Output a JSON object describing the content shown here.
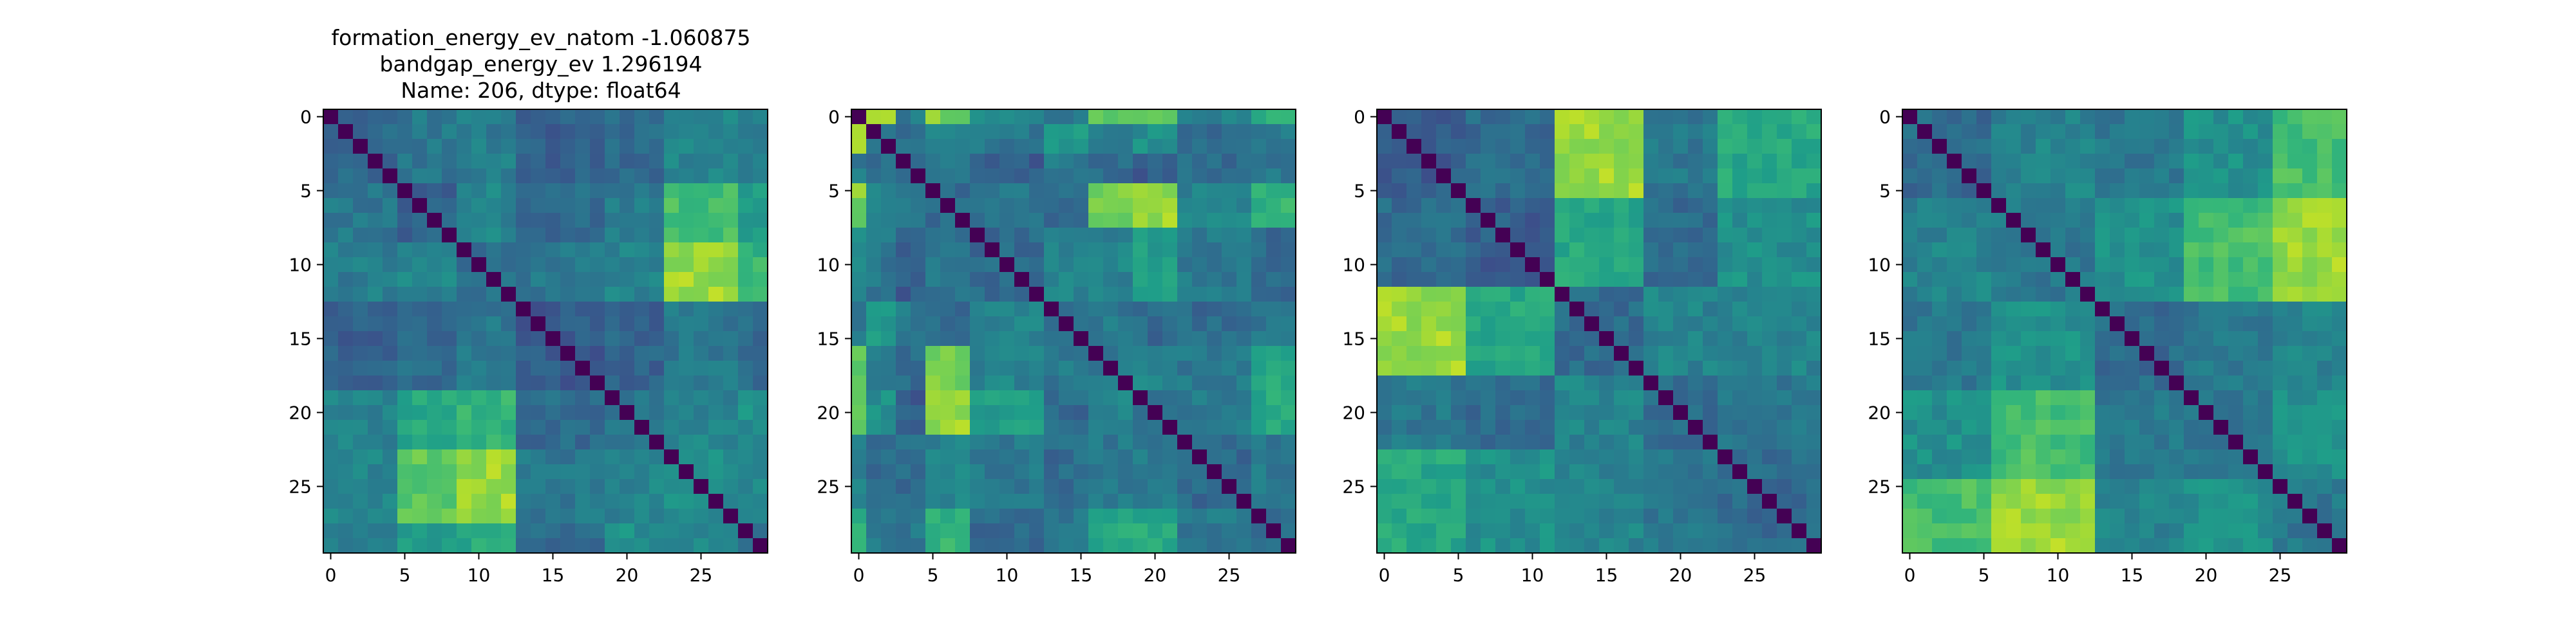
{
  "figure": {
    "title_lines": [
      "formation_energy_ev_natom   -1.060875",
      "bandgap_energy_ev            1.296194",
      "Name: 206, dtype: float64"
    ]
  },
  "chart_data": [
    {
      "type": "heatmap",
      "title": "",
      "size": 30,
      "colormap": "viridis",
      "diagonal": "zero (dark)",
      "xticks": [
        "0",
        "5",
        "10",
        "15",
        "20",
        "25"
      ],
      "yticks": [
        "0",
        "5",
        "10",
        "15",
        "20",
        "25"
      ],
      "xlim": [
        -0.5,
        29.5
      ],
      "ylim": [
        29.5,
        -0.5
      ],
      "groups": [
        [
          0,
          1,
          2,
          3,
          4
        ],
        [
          5,
          6,
          7,
          8
        ],
        [
          9,
          10,
          11,
          12
        ],
        [
          13,
          14,
          15,
          16,
          17,
          18
        ],
        [
          19,
          20,
          21,
          22
        ],
        [
          23,
          24,
          25,
          26,
          27
        ],
        [
          28,
          29
        ]
      ],
      "block_values": [
        [
          0.35,
          0.4,
          0.42,
          0.3,
          0.35,
          0.45,
          0.4
        ],
        [
          0.4,
          0.32,
          0.45,
          0.35,
          0.42,
          0.7,
          0.55
        ],
        [
          0.42,
          0.45,
          0.38,
          0.4,
          0.45,
          0.85,
          0.65
        ],
        [
          0.3,
          0.35,
          0.4,
          0.28,
          0.32,
          0.4,
          0.35
        ],
        [
          0.45,
          0.6,
          0.65,
          0.35,
          0.4,
          0.45,
          0.5
        ],
        [
          0.45,
          0.75,
          0.85,
          0.4,
          0.45,
          0.48,
          0.45
        ],
        [
          0.4,
          0.55,
          0.6,
          0.35,
          0.5,
          0.45,
          0.38
        ]
      ]
    },
    {
      "type": "heatmap",
      "title": "",
      "size": 30,
      "colormap": "viridis",
      "diagonal": "zero (dark)",
      "xticks": [
        "0",
        "5",
        "10",
        "15",
        "20",
        "25"
      ],
      "yticks": [
        "0",
        "5",
        "10",
        "15",
        "20",
        "25"
      ],
      "xlim": [
        -0.5,
        29.5
      ],
      "ylim": [
        29.5,
        -0.5
      ],
      "groups": [
        [
          0
        ],
        [
          1,
          2
        ],
        [
          3,
          4
        ],
        [
          5,
          6,
          7
        ],
        [
          8,
          9,
          10,
          11,
          12
        ],
        [
          13,
          14,
          15
        ],
        [
          16,
          17,
          18
        ],
        [
          19,
          20,
          21
        ],
        [
          22,
          23,
          24,
          25,
          26
        ],
        [
          27,
          28,
          29
        ]
      ],
      "block_values": [
        [
          0.3,
          0.85,
          0.4,
          0.8,
          0.45,
          0.4,
          0.75,
          0.8,
          0.45,
          0.65
        ],
        [
          0.85,
          0.4,
          0.35,
          0.45,
          0.4,
          0.55,
          0.45,
          0.5,
          0.35,
          0.4
        ],
        [
          0.4,
          0.35,
          0.35,
          0.4,
          0.3,
          0.4,
          0.35,
          0.3,
          0.35,
          0.4
        ],
        [
          0.8,
          0.45,
          0.4,
          0.35,
          0.4,
          0.35,
          0.8,
          0.85,
          0.45,
          0.65
        ],
        [
          0.45,
          0.4,
          0.3,
          0.4,
          0.35,
          0.45,
          0.45,
          0.55,
          0.4,
          0.35
        ],
        [
          0.4,
          0.55,
          0.4,
          0.35,
          0.45,
          0.4,
          0.4,
          0.35,
          0.35,
          0.4
        ],
        [
          0.75,
          0.45,
          0.35,
          0.8,
          0.45,
          0.4,
          0.4,
          0.45,
          0.4,
          0.6
        ],
        [
          0.8,
          0.5,
          0.3,
          0.85,
          0.55,
          0.35,
          0.45,
          0.4,
          0.4,
          0.6
        ],
        [
          0.45,
          0.35,
          0.35,
          0.45,
          0.4,
          0.35,
          0.4,
          0.4,
          0.35,
          0.4
        ],
        [
          0.65,
          0.4,
          0.4,
          0.65,
          0.35,
          0.4,
          0.6,
          0.6,
          0.4,
          0.35
        ]
      ]
    },
    {
      "type": "heatmap",
      "title": "",
      "size": 30,
      "colormap": "viridis",
      "diagonal": "zero (dark)",
      "xticks": [
        "0",
        "5",
        "10",
        "15",
        "20",
        "25"
      ],
      "yticks": [
        "0",
        "5",
        "10",
        "15",
        "20",
        "25"
      ],
      "xlim": [
        -0.5,
        29.5
      ],
      "ylim": [
        29.5,
        -0.5
      ],
      "groups": [
        [
          0,
          1,
          2,
          3,
          4,
          5
        ],
        [
          6,
          7,
          8,
          9,
          10,
          11
        ],
        [
          12,
          13,
          14,
          15,
          16,
          17
        ],
        [
          18,
          19,
          20,
          21,
          22
        ],
        [
          23,
          24,
          25,
          26,
          27,
          28,
          29
        ]
      ],
      "block_values": [
        [
          0.3,
          0.35,
          0.85,
          0.4,
          0.6
        ],
        [
          0.35,
          0.3,
          0.6,
          0.35,
          0.5
        ],
        [
          0.85,
          0.6,
          0.35,
          0.45,
          0.45
        ],
        [
          0.4,
          0.35,
          0.45,
          0.35,
          0.4
        ],
        [
          0.6,
          0.5,
          0.45,
          0.4,
          0.35
        ]
      ]
    },
    {
      "type": "heatmap",
      "title": "",
      "size": 30,
      "colormap": "viridis",
      "diagonal": "zero (dark)",
      "xticks": [
        "0",
        "5",
        "10",
        "15",
        "20",
        "25"
      ],
      "yticks": [
        "0",
        "5",
        "10",
        "15",
        "20",
        "25"
      ],
      "xlim": [
        -0.5,
        29.5
      ],
      "ylim": [
        29.5,
        -0.5
      ],
      "groups": [
        [
          0,
          1,
          2,
          3,
          4,
          5
        ],
        [
          6,
          7,
          8,
          9,
          10,
          11,
          12
        ],
        [
          13,
          14,
          15,
          16,
          17,
          18
        ],
        [
          19,
          20,
          21,
          22,
          23,
          24
        ],
        [
          25,
          26,
          27,
          28,
          29
        ]
      ],
      "block_values": [
        [
          0.35,
          0.45,
          0.4,
          0.5,
          0.7
        ],
        [
          0.45,
          0.4,
          0.5,
          0.7,
          0.85
        ],
        [
          0.4,
          0.5,
          0.35,
          0.4,
          0.45
        ],
        [
          0.5,
          0.7,
          0.4,
          0.4,
          0.5
        ],
        [
          0.7,
          0.85,
          0.45,
          0.5,
          0.4
        ]
      ]
    }
  ]
}
